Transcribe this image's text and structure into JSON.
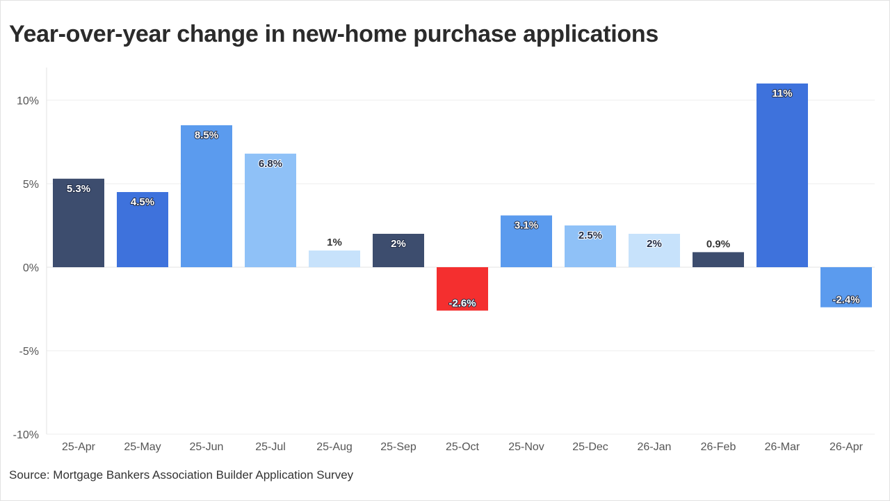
{
  "title": "Year-over-year change in new-home purchase applications",
  "source": "Source: Mortgage Bankers Association Builder Application Survey",
  "chart_data": {
    "type": "bar",
    "categories": [
      "25-Apr",
      "25-May",
      "25-Jun",
      "25-Jul",
      "25-Aug",
      "25-Sep",
      "25-Oct",
      "25-Nov",
      "25-Dec",
      "26-Jan",
      "26-Feb",
      "26-Mar",
      "26-Apr"
    ],
    "values": [
      5.3,
      4.5,
      8.5,
      6.8,
      1,
      2,
      -2.6,
      3.1,
      2.5,
      2,
      0.9,
      11,
      -2.4
    ],
    "data_labels": [
      "5.3%",
      "4.5%",
      "8.5%",
      "6.8%",
      "1%",
      "2%",
      "-2.6%",
      "3.1%",
      "2.5%",
      "2%",
      "0.9%",
      "11%",
      "-2.4%"
    ],
    "bar_colors": [
      "#3d4d6e",
      "#3e72dc",
      "#5b9bee",
      "#8fc1f7",
      "#c7e2fb",
      "#3d4d6e",
      "#f42f2f",
      "#5b9bee",
      "#8fc1f7",
      "#c7e2fb",
      "#3d4d6e",
      "#3e72dc",
      "#5b9bee"
    ],
    "y_ticks": [
      10,
      5,
      0,
      -5,
      -10
    ],
    "y_tick_labels": [
      "10%",
      "5%",
      "0%",
      "-5%",
      "-10%"
    ],
    "ylim": [
      -10,
      12
    ],
    "xlabel": "",
    "ylabel": "",
    "grid": true,
    "legend": "none"
  }
}
